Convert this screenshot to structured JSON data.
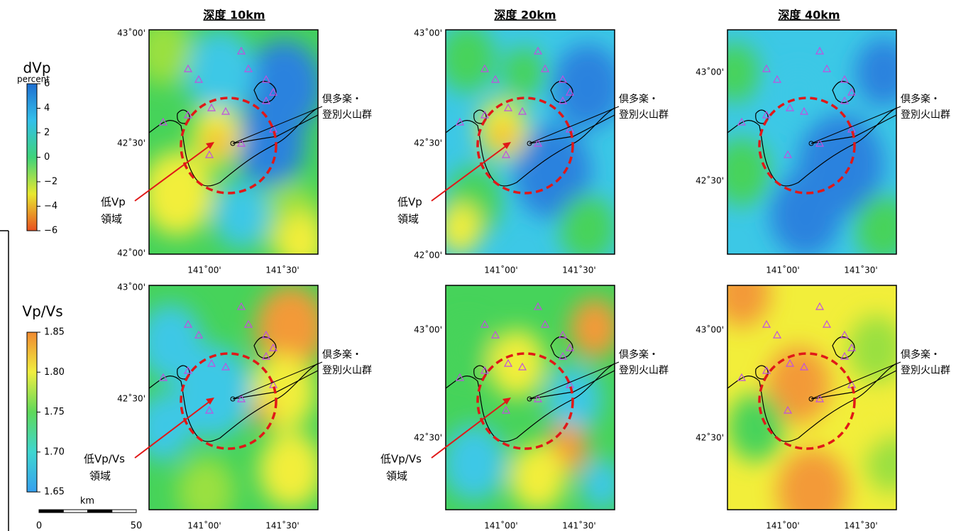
{
  "columns": [
    "深度 10km",
    "深度 20km",
    "深度 40km"
  ],
  "colorbars": [
    {
      "title": "dVp",
      "unit": "percent",
      "ticks": [
        "6",
        "4",
        "2",
        "0",
        "−2",
        "−4",
        "−6"
      ]
    },
    {
      "title": "Vp/Vs",
      "ticks": [
        "1.85",
        "1.80",
        "1.75",
        "1.70",
        "1.65"
      ]
    }
  ],
  "scale_bar": {
    "unit": "km",
    "ticks": [
      "0",
      "50"
    ]
  },
  "panels": [
    {
      "lat_labels": [
        "43˚00'",
        "42˚30'",
        "42˚00'"
      ],
      "lon_labels": [
        "141˚00'",
        "141˚30'"
      ],
      "volcano_label": [
        "倶多楽・",
        "登別火山群"
      ],
      "region_label": [
        "低Vp",
        "領域"
      ]
    },
    {
      "lat_labels": [
        "43˚00'",
        "42˚30'",
        "42˚00'"
      ],
      "lon_labels": [
        "141˚00'",
        "141˚30'"
      ],
      "volcano_label": [
        "倶多楽・",
        "登別火山群"
      ],
      "region_label": [
        "低Vp",
        "領域"
      ]
    },
    {
      "lat_labels": [
        "43˚00'",
        "42˚30'"
      ],
      "lon_labels": [
        "141˚00'",
        "141˚30'"
      ],
      "volcano_label": [
        "倶多楽・",
        "登別火山群"
      ]
    },
    {
      "lat_labels": [
        "43˚00'",
        "42˚30'"
      ],
      "lon_labels": [
        "141˚00'",
        "141˚30'"
      ],
      "volcano_label": [
        "倶多楽・",
        "登別火山群"
      ],
      "region_label": [
        "低Vp/Vs",
        "領域"
      ]
    },
    {
      "lat_labels": [
        "43˚00'",
        "42˚30'"
      ],
      "lon_labels": [
        "141˚00'",
        "141˚30'"
      ],
      "volcano_label": [
        "倶多楽・",
        "登別火山群"
      ],
      "region_label": [
        "低Vp/Vs",
        "領域"
      ]
    },
    {
      "lat_labels": [
        "43˚00'",
        "42˚30'"
      ],
      "lon_labels": [
        "141˚00'",
        "141˚30'"
      ],
      "volcano_label": [
        "倶多楽・",
        "登別火山群"
      ]
    }
  ]
}
